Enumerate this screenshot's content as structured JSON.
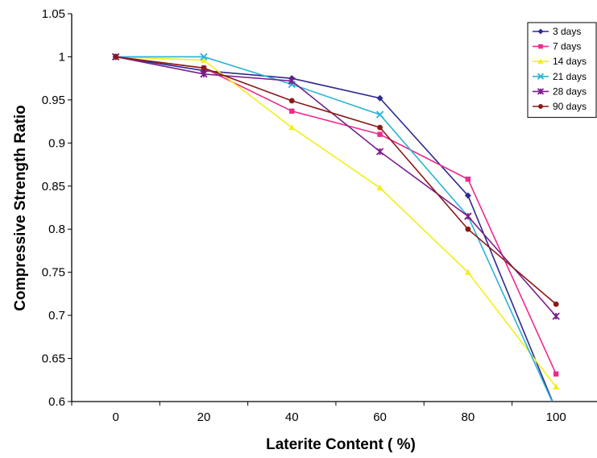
{
  "chart_data": {
    "type": "line",
    "title": "",
    "xlabel": "Laterite Content ( %)",
    "ylabel": "Compressive Strength Ratio",
    "x": [
      0,
      20,
      40,
      60,
      80,
      100
    ],
    "x_ticks": [
      "0",
      "20",
      "40",
      "60",
      "80",
      "100"
    ],
    "y_ticks": [
      "0.6",
      "0.65",
      "0.7",
      "0.75",
      "0.8",
      "0.85",
      "0.9",
      "0.95",
      "1",
      "1.05"
    ],
    "ylim": [
      0.6,
      1.05
    ],
    "grid": false,
    "legend_position": "top-right",
    "series": [
      {
        "name": "3 days",
        "color": "#2e2a8f",
        "marker": "diamond",
        "values": [
          1.0,
          0.984,
          0.975,
          0.952,
          0.839,
          0.59
        ]
      },
      {
        "name": "7 days",
        "color": "#ee2a8c",
        "marker": "square",
        "values": [
          1.0,
          0.987,
          0.937,
          0.91,
          0.858,
          0.632
        ]
      },
      {
        "name": "14 days",
        "color": "#f2ee1c",
        "marker": "triangle",
        "values": [
          1.0,
          0.996,
          0.918,
          0.848,
          0.75,
          0.617
        ]
      },
      {
        "name": "21 days",
        "color": "#2bb3d6",
        "marker": "x",
        "values": [
          1.0,
          1.0,
          0.968,
          0.933,
          0.815,
          0.59
        ]
      },
      {
        "name": "28 days",
        "color": "#7a1f8c",
        "marker": "star",
        "values": [
          1.0,
          0.98,
          0.972,
          0.89,
          0.815,
          0.699
        ]
      },
      {
        "name": "90 days",
        "color": "#8b1a1a",
        "marker": "circle",
        "values": [
          1.0,
          0.987,
          0.949,
          0.918,
          0.8,
          0.713
        ]
      }
    ]
  }
}
